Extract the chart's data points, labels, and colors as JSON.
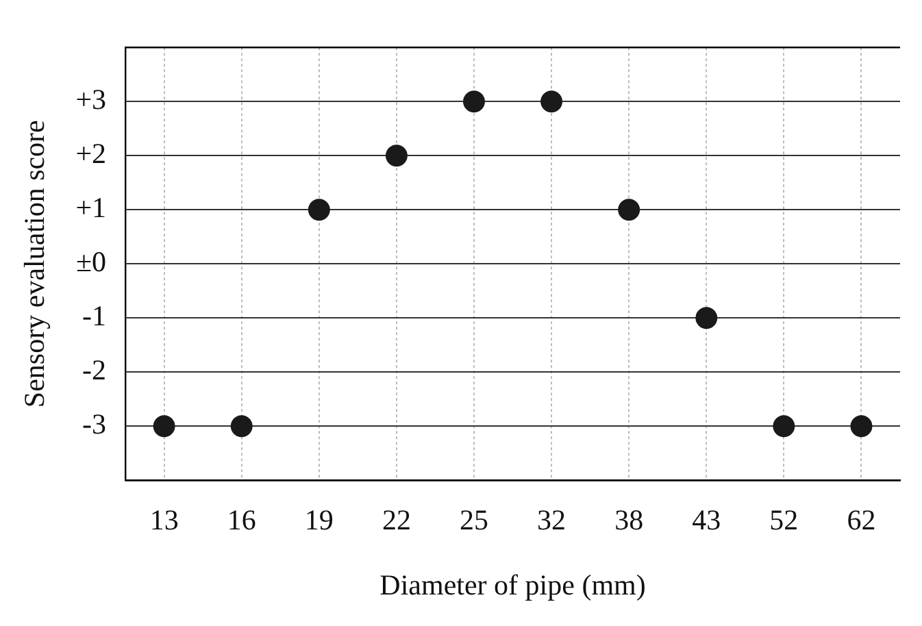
{
  "chart_data": {
    "type": "scatter",
    "xlabel": "Diameter of pipe (mm)",
    "ylabel": "Sensory evaluation score",
    "categories": [
      "13",
      "16",
      "19",
      "22",
      "25",
      "32",
      "38",
      "43",
      "52",
      "62"
    ],
    "values": [
      -3,
      -3,
      1,
      2,
      3,
      3,
      1,
      -1,
      -3,
      -3
    ],
    "color": "#1a1a1a",
    "ylim": [
      -4,
      4
    ],
    "yticks": [
      {
        "value": -3,
        "label": "-3"
      },
      {
        "value": -2,
        "label": "-2"
      },
      {
        "value": -1,
        "label": "-1"
      },
      {
        "value": 0,
        "label": "±0"
      },
      {
        "value": 1,
        "label": "+1"
      },
      {
        "value": 2,
        "label": "+2"
      },
      {
        "value": 3,
        "label": "+3"
      }
    ],
    "grid": true,
    "marker": "circle",
    "legend": false
  }
}
